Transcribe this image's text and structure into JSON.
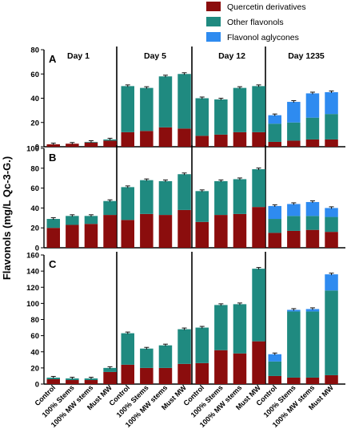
{
  "chart_data": {
    "type": "bar",
    "stacked": true,
    "ylabel": "Flavonols (mg/L Qc-3-G.)",
    "periods": [
      "Day 1",
      "Day 5",
      "Day 12",
      "Day 1235"
    ],
    "treatments": [
      "Control",
      "100% Stems",
      "100% MW stems",
      "Must MW"
    ],
    "legend": [
      {
        "name": "Quercetin derivatives",
        "color": "#8B0D0D"
      },
      {
        "name": "Other flavonols",
        "color": "#1F8A80"
      },
      {
        "name": "Flavonol aglycones",
        "color": "#2E8BF0"
      }
    ],
    "panels": [
      {
        "label": "A",
        "show_period_labels": true,
        "ylim": [
          0,
          80
        ],
        "yticks": [
          "0",
          "20",
          "40",
          "60",
          "80"
        ],
        "quercetin": [
          2,
          2.5,
          3.5,
          5,
          12,
          13,
          16,
          15,
          9,
          10,
          12,
          12,
          4,
          5,
          6,
          6
        ],
        "other": [
          0,
          0,
          0.5,
          1,
          38,
          35.5,
          42,
          45,
          31,
          29,
          36.5,
          38,
          15,
          15,
          18,
          21
        ],
        "aglycones": [
          0,
          0,
          0,
          0,
          0,
          0,
          0,
          0,
          0,
          0,
          0,
          0,
          7,
          17,
          20,
          18
        ]
      },
      {
        "label": "B",
        "show_period_labels": false,
        "ylim": [
          0,
          100
        ],
        "yticks": [
          "0",
          "20",
          "40",
          "60",
          "80",
          "100"
        ],
        "quercetin": [
          20,
          23,
          24,
          33,
          28,
          34,
          33,
          38,
          26,
          33,
          34,
          41,
          15,
          17,
          18,
          16
        ],
        "other": [
          9,
          9,
          8,
          14,
          33,
          34,
          34,
          36,
          31,
          34,
          35,
          38,
          14,
          15,
          14,
          15
        ],
        "aglycones": [
          0,
          0,
          0,
          0,
          0,
          0,
          0,
          0,
          0,
          0,
          0,
          0,
          13,
          12,
          14,
          9
        ]
      },
      {
        "label": "C",
        "show_period_labels": false,
        "ylim": [
          0,
          160
        ],
        "yticks": [
          "0",
          "20",
          "40",
          "60",
          "80",
          "100",
          "120",
          "140",
          "160"
        ],
        "quercetin": [
          6,
          5,
          5,
          15,
          24,
          20,
          20,
          25,
          26,
          42,
          38,
          53,
          10,
          8,
          8,
          11
        ],
        "other": [
          2,
          2,
          2,
          5,
          39,
          24,
          28,
          43,
          44,
          56,
          61,
          90,
          18,
          82,
          82,
          105
        ],
        "aglycones": [
          0,
          0,
          0,
          0,
          0,
          0,
          0,
          0,
          0,
          0,
          0,
          0,
          9,
          2,
          3,
          20
        ]
      }
    ]
  }
}
